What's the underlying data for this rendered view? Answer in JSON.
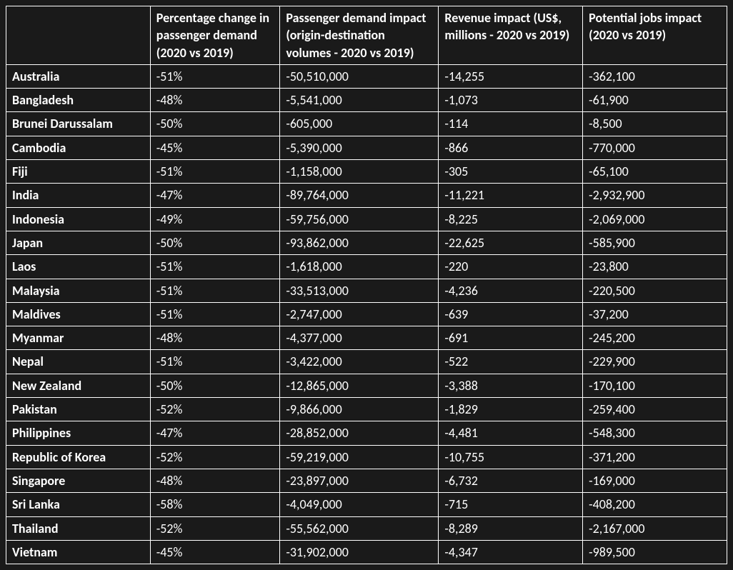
{
  "table": {
    "background_color": "#1a1a1a",
    "border_color": "#ffffff",
    "text_color": "#ffffff",
    "font_family": "Calibri, Arial, sans-serif",
    "header_fontsize": 18,
    "cell_fontsize": 18,
    "columns": [
      "",
      "Percentage change in passenger demand (2020 vs 2019)",
      "Passenger demand impact (origin-destination volumes - 2020 vs 2019)",
      "Revenue impact (US$, millions - 2020 vs 2019)",
      "Potential jobs impact (2020 vs 2019)"
    ],
    "rows": [
      {
        "country": "Australia",
        "pct": "-51%",
        "demand": "-50,510,000",
        "revenue": "-14,255",
        "jobs": "-362,100"
      },
      {
        "country": "Bangladesh",
        "pct": "-48%",
        "demand": "-5,541,000",
        "revenue": "-1,073",
        "jobs": "-61,900"
      },
      {
        "country": "Brunei Darussalam",
        "pct": "-50%",
        "demand": "-605,000",
        "revenue": "-114",
        "jobs": "-8,500"
      },
      {
        "country": "Cambodia",
        "pct": "-45%",
        "demand": "-5,390,000",
        "revenue": "-866",
        "jobs": "-770,000"
      },
      {
        "country": "Fiji",
        "pct": "-51%",
        "demand": "-1,158,000",
        "revenue": "-305",
        "jobs": "-65,100"
      },
      {
        "country": "India",
        "pct": "-47%",
        "demand": "-89,764,000",
        "revenue": "-11,221",
        "jobs": "-2,932,900"
      },
      {
        "country": "Indonesia",
        "pct": "-49%",
        "demand": "-59,756,000",
        "revenue": "-8,225",
        "jobs": "-2,069,000"
      },
      {
        "country": "Japan",
        "pct": "-50%",
        "demand": "-93,862,000",
        "revenue": "-22,625",
        "jobs": "-585,900"
      },
      {
        "country": "Laos",
        "pct": "-51%",
        "demand": "-1,618,000",
        "revenue": "-220",
        "jobs": "-23,800"
      },
      {
        "country": "Malaysia",
        "pct": "-51%",
        "demand": "-33,513,000",
        "revenue": "-4,236",
        "jobs": "-220,500"
      },
      {
        "country": "Maldives",
        "pct": "-51%",
        "demand": "-2,747,000",
        "revenue": "-639",
        "jobs": "-37,200"
      },
      {
        "country": "Myanmar",
        "pct": "-48%",
        "demand": "-4,377,000",
        "revenue": "-691",
        "jobs": "-245,200"
      },
      {
        "country": "Nepal",
        "pct": "-51%",
        "demand": "-3,422,000",
        "revenue": "-522",
        "jobs": "-229,900"
      },
      {
        "country": "New Zealand",
        "pct": "-50%",
        "demand": "-12,865,000",
        "revenue": "-3,388",
        "jobs": "-170,100"
      },
      {
        "country": "Pakistan",
        "pct": "-52%",
        "demand": "-9,866,000",
        "revenue": "-1,829",
        "jobs": "-259,400"
      },
      {
        "country": "Philippines",
        "pct": "-47%",
        "demand": "-28,852,000",
        "revenue": "-4,481",
        "jobs": "-548,300"
      },
      {
        "country": "Republic of Korea",
        "pct": "-52%",
        "demand": "-59,219,000",
        "revenue": "-10,755",
        "jobs": "-371,200"
      },
      {
        "country": "Singapore",
        "pct": "-48%",
        "demand": "-23,897,000",
        "revenue": "-6,732",
        "jobs": "-169,000"
      },
      {
        "country": "Sri Lanka",
        "pct": "-58%",
        "demand": "-4,049,000",
        "revenue": "-715",
        "jobs": "-408,200"
      },
      {
        "country": "Thailand",
        "pct": "-52%",
        "demand": "-55,562,000",
        "revenue": "-8,289",
        "jobs": "-2,167,000"
      },
      {
        "country": "Vietnam",
        "pct": "-45%",
        "demand": "-31,902,000",
        "revenue": "-4,347",
        "jobs": "-989,500"
      }
    ]
  }
}
